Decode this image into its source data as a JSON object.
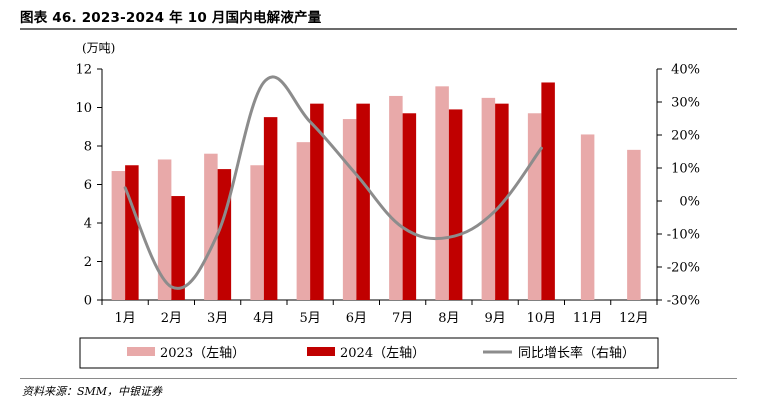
{
  "header": {
    "title": "图表 46. 2023-2024 年 10 月国内电解液产量"
  },
  "footer": {
    "source": "资料来源：SMM，中银证券"
  },
  "chart_data": {
    "type": "bar",
    "unit_label": "(万吨)",
    "categories": [
      "1月",
      "2月",
      "3月",
      "4月",
      "5月",
      "6月",
      "7月",
      "8月",
      "9月",
      "10月",
      "11月",
      "12月"
    ],
    "left_axis": {
      "min": 0,
      "max": 12,
      "ticks": [
        0,
        2,
        4,
        6,
        8,
        10,
        12
      ],
      "tick_labels": [
        "0",
        "2",
        "4",
        "6",
        "8",
        "10",
        "12"
      ]
    },
    "right_axis": {
      "min": -30,
      "max": 40,
      "ticks": [
        -30,
        -20,
        -10,
        0,
        10,
        20,
        30,
        40
      ],
      "tick_labels": [
        "-30%",
        "-20%",
        "-10%",
        "0%",
        "10%",
        "20%",
        "30%",
        "40%"
      ]
    },
    "series": [
      {
        "name": "2023（左轴）",
        "type": "bar",
        "axis": "left",
        "color": "#e8a9a9",
        "values": [
          6.7,
          7.3,
          7.6,
          7.0,
          8.2,
          9.4,
          10.6,
          11.1,
          10.5,
          9.7,
          8.6,
          7.8
        ]
      },
      {
        "name": "2024（左轴）",
        "type": "bar",
        "axis": "left",
        "color": "#c00000",
        "values": [
          7.0,
          5.4,
          6.8,
          9.5,
          10.2,
          10.2,
          9.7,
          9.9,
          10.2,
          11.3,
          null,
          null
        ]
      },
      {
        "name": "同比增长率（右轴）",
        "type": "line",
        "axis": "right",
        "color": "#8c8c8c",
        "values": [
          4,
          -26,
          -10,
          36,
          24,
          8,
          -8,
          -11,
          -3,
          16,
          null,
          null
        ]
      }
    ],
    "legend_position": "bottom",
    "grid": false
  }
}
